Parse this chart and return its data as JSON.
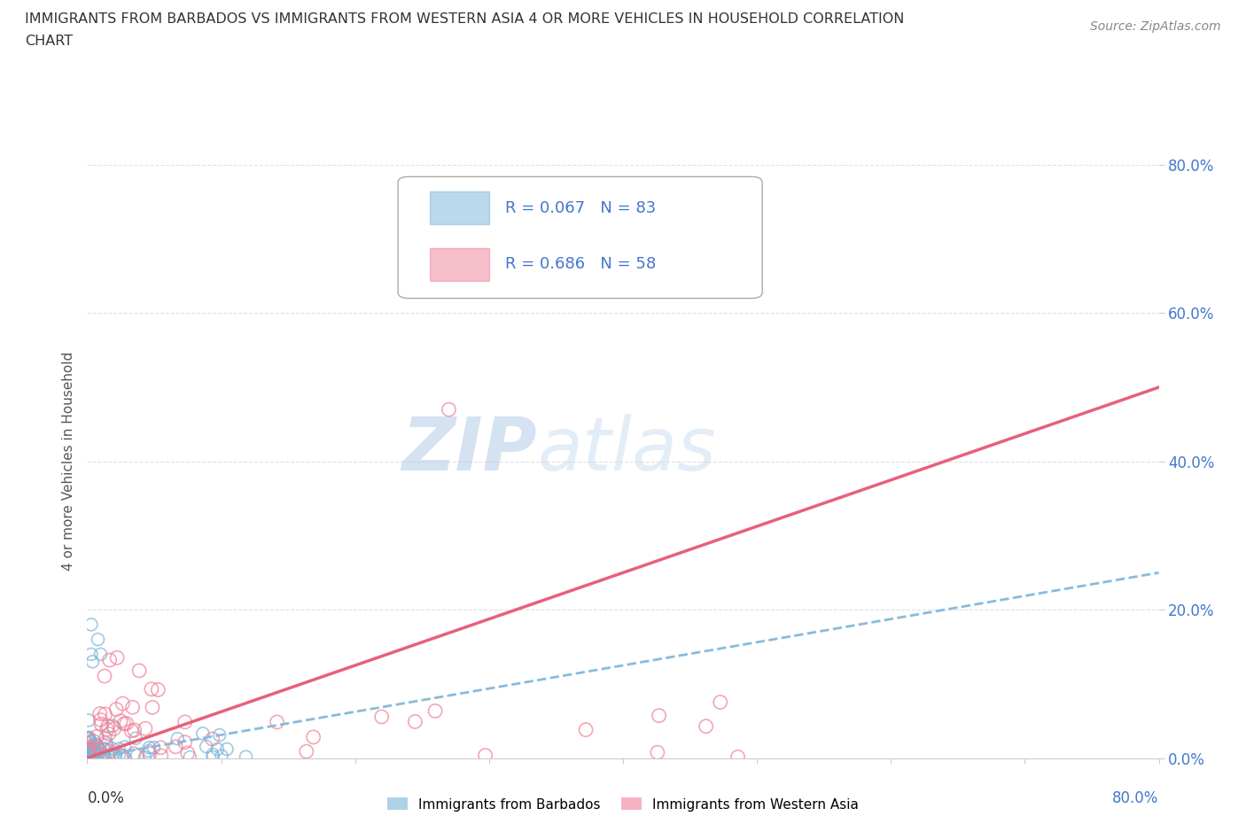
{
  "title_line1": "IMMIGRANTS FROM BARBADOS VS IMMIGRANTS FROM WESTERN ASIA 4 OR MORE VEHICLES IN HOUSEHOLD CORRELATION",
  "title_line2": "CHART",
  "source": "Source: ZipAtlas.com",
  "ylabel": "4 or more Vehicles in Household",
  "xlim": [
    0.0,
    0.8
  ],
  "ylim": [
    0.0,
    0.8
  ],
  "ytick_values": [
    0.0,
    0.2,
    0.4,
    0.6,
    0.8
  ],
  "ytick_labels": [
    "0.0%",
    "20.0%",
    "40.0%",
    "60.0%",
    "80.0%"
  ],
  "barbados_color": "#7ab3d9",
  "western_asia_color": "#f08098",
  "barbados_R": 0.067,
  "barbados_N": 83,
  "western_asia_R": 0.686,
  "western_asia_N": 58,
  "legend_R_color": "#4477cc",
  "barbados_trend_color": "#88bbdd",
  "western_asia_trend_color": "#e8607a",
  "background_color": "#ffffff",
  "grid_color": "#e0e0e0",
  "watermark_color": "#ccdded",
  "barbados_trend_x0": 0.0,
  "barbados_trend_y0": 0.0,
  "barbados_trend_x1": 0.8,
  "barbados_trend_y1": 0.25,
  "western_asia_trend_x0": 0.0,
  "western_asia_trend_y0": 0.0,
  "western_asia_trend_x1": 0.8,
  "western_asia_trend_y1": 0.5
}
